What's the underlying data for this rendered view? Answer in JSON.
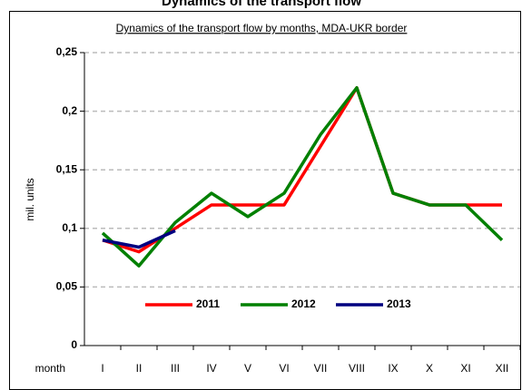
{
  "chart_data": {
    "type": "line",
    "title": "Dynamics of the transport flow",
    "subtitle": "Dynamics of the transport flow by months, MDA-UKR border",
    "xlabel": "month",
    "ylabel": "mil. units",
    "categories": [
      "I",
      "II",
      "III",
      "IV",
      "V",
      "VI",
      "VII",
      "VIII",
      "IX",
      "X",
      "XI",
      "XII"
    ],
    "series": [
      {
        "name": "2011",
        "color": "#ff0000",
        "values": [
          0.09,
          0.08,
          0.1,
          0.12,
          0.12,
          0.12,
          0.17,
          0.22,
          0.13,
          0.12,
          0.12,
          0.12
        ]
      },
      {
        "name": "2012",
        "color": "#008000",
        "values": [
          0.096,
          0.068,
          0.105,
          0.13,
          0.11,
          0.13,
          0.18,
          0.22,
          0.13,
          0.12,
          0.12,
          0.09
        ]
      },
      {
        "name": "2013",
        "color": "#000080",
        "values": [
          0.09,
          0.084,
          0.098,
          null,
          null,
          null,
          null,
          null,
          null,
          null,
          null,
          null
        ]
      }
    ],
    "ylim": [
      0,
      0.25
    ],
    "yticks": [
      0,
      {
        "value": 0.05,
        "label": "0,05"
      },
      {
        "value": 0.1,
        "label": "0,1"
      },
      {
        "value": 0.15,
        "label": "0,15"
      },
      {
        "value": 0.2,
        "label": "0,2"
      },
      {
        "value": 0.25,
        "label": "0,25"
      }
    ],
    "grid": true,
    "legend": "bottom"
  }
}
